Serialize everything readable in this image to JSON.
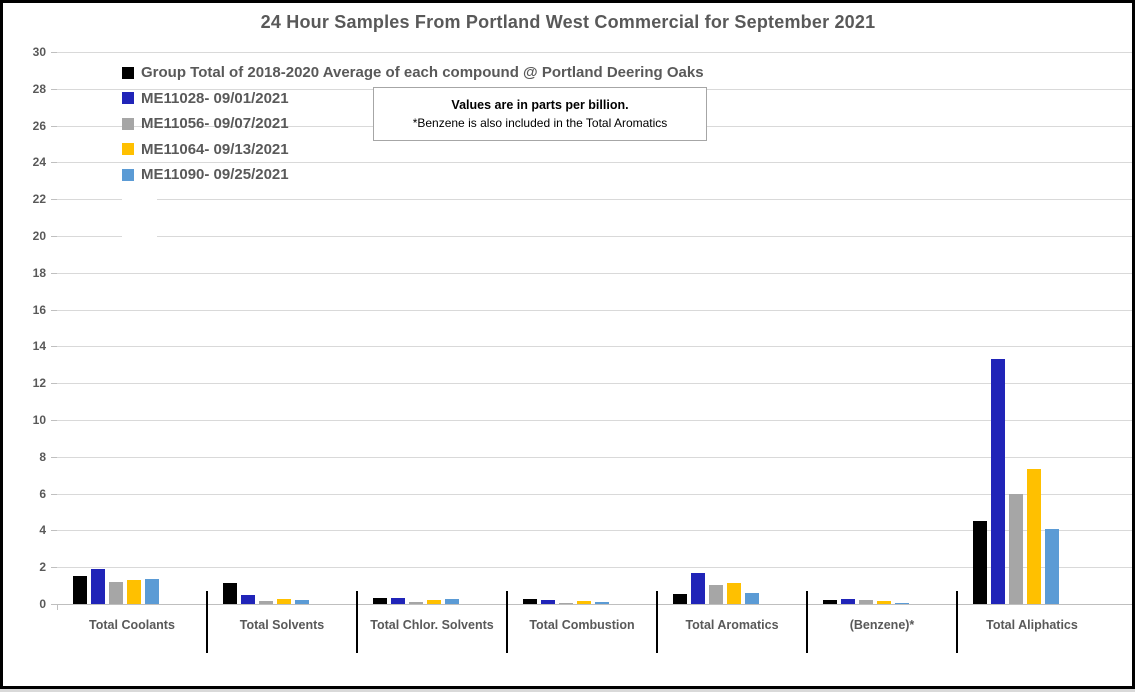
{
  "title": "24 Hour Samples From Portland West Commercial for September 2021",
  "note": {
    "line1": "Values are in parts per billion.",
    "line2": "*Benzene is also included in the Total Aromatics"
  },
  "chart_data": {
    "type": "bar",
    "title": "24 Hour Samples From Portland West Commercial for September 2021",
    "categories": [
      "Total Coolants",
      "Total Solvents",
      "Total Chlor. Solvents",
      "Total Combustion",
      "Total Aromatics",
      "(Benzene)*",
      "Total Aliphatics"
    ],
    "series": [
      {
        "name": "Group Total of 2018-2020 Average of each compound @ Portland Deering Oaks",
        "color": "#000000",
        "values": [
          1.5,
          1.15,
          0.35,
          0.25,
          0.55,
          0.2,
          4.5
        ]
      },
      {
        "name": "ME11028- 09/01/2021",
        "color": "#2024B8",
        "values": [
          1.9,
          0.5,
          0.3,
          0.2,
          1.7,
          0.25,
          13.3
        ]
      },
      {
        "name": "ME11056- 09/07/2021",
        "color": "#a6a6a6",
        "values": [
          1.2,
          0.15,
          0.12,
          0.08,
          1.05,
          0.2,
          6.0
        ]
      },
      {
        "name": "ME11064- 09/13/2021",
        "color": "#ffc000",
        "values": [
          1.3,
          0.25,
          0.2,
          0.15,
          1.15,
          0.15,
          7.35
        ]
      },
      {
        "name": "ME11090- 09/25/2021",
        "color": "#5b9bd5",
        "values": [
          1.35,
          0.2,
          0.28,
          0.13,
          0.6,
          0.08,
          4.1
        ]
      }
    ],
    "xlabel": "",
    "ylabel": "",
    "ylim": [
      0,
      30
    ],
    "ytick_step": 2,
    "grid": true,
    "legend_position": "top-left",
    "values_unit": "parts per billion"
  },
  "colors": {
    "axis_text": "#595959",
    "title_text": "#595959",
    "gridline": "#d9d9d9",
    "frame_border": "#000000",
    "note_border": "#a6a6a6"
  }
}
